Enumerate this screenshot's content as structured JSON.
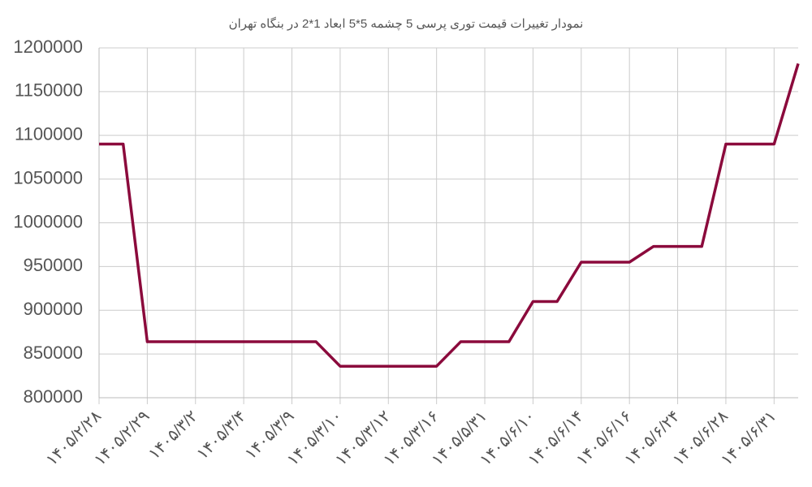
{
  "chart_data": {
    "type": "line",
    "title": "نمودار تغییرات قیمت توری پرسی 5 چشمه 5*5 ابعاد 1*2 در بنگاه تهران",
    "categories": [
      "۱۴۰۵/۲/۲۸",
      null,
      "۱۴۰۵/۲/۲۹",
      null,
      "۱۴۰۵/۳/۲",
      null,
      "۱۴۰۵/۳/۴",
      null,
      "۱۴۰۵/۳/۹",
      null,
      "۱۴۰۵/۳/۱۰",
      null,
      "۱۴۰۵/۳/۱۲",
      null,
      "۱۴۰۵/۳/۱۶",
      null,
      "۱۴۰۵/۵/۳۱",
      null,
      "۱۴۰۵/۶/۱۰",
      null,
      "۱۴۰۵/۶/۱۴",
      null,
      "۱۴۰۵/۶/۱۶",
      null,
      "۱۴۰۵/۶/۲۴",
      null,
      "۱۴۰۵/۶/۲۸",
      null,
      "۱۴۰۵/۶/۳۱",
      null
    ],
    "series": [
      {
        "color": "#8b0a3c",
        "values": [
          1090000,
          1090000,
          864000,
          864000,
          864000,
          864000,
          864000,
          864000,
          864000,
          864000,
          836000,
          836000,
          836000,
          836000,
          836000,
          864000,
          864000,
          864000,
          910000,
          910000,
          955000,
          955000,
          955000,
          973000,
          973000,
          973000,
          1090000,
          1090000,
          1090000,
          1182000
        ]
      }
    ],
    "ylim": [
      800000,
      1200000
    ],
    "yticks": [
      800000,
      850000,
      900000,
      950000,
      1000000,
      1050000,
      1100000,
      1150000,
      1200000
    ],
    "grid": true
  }
}
